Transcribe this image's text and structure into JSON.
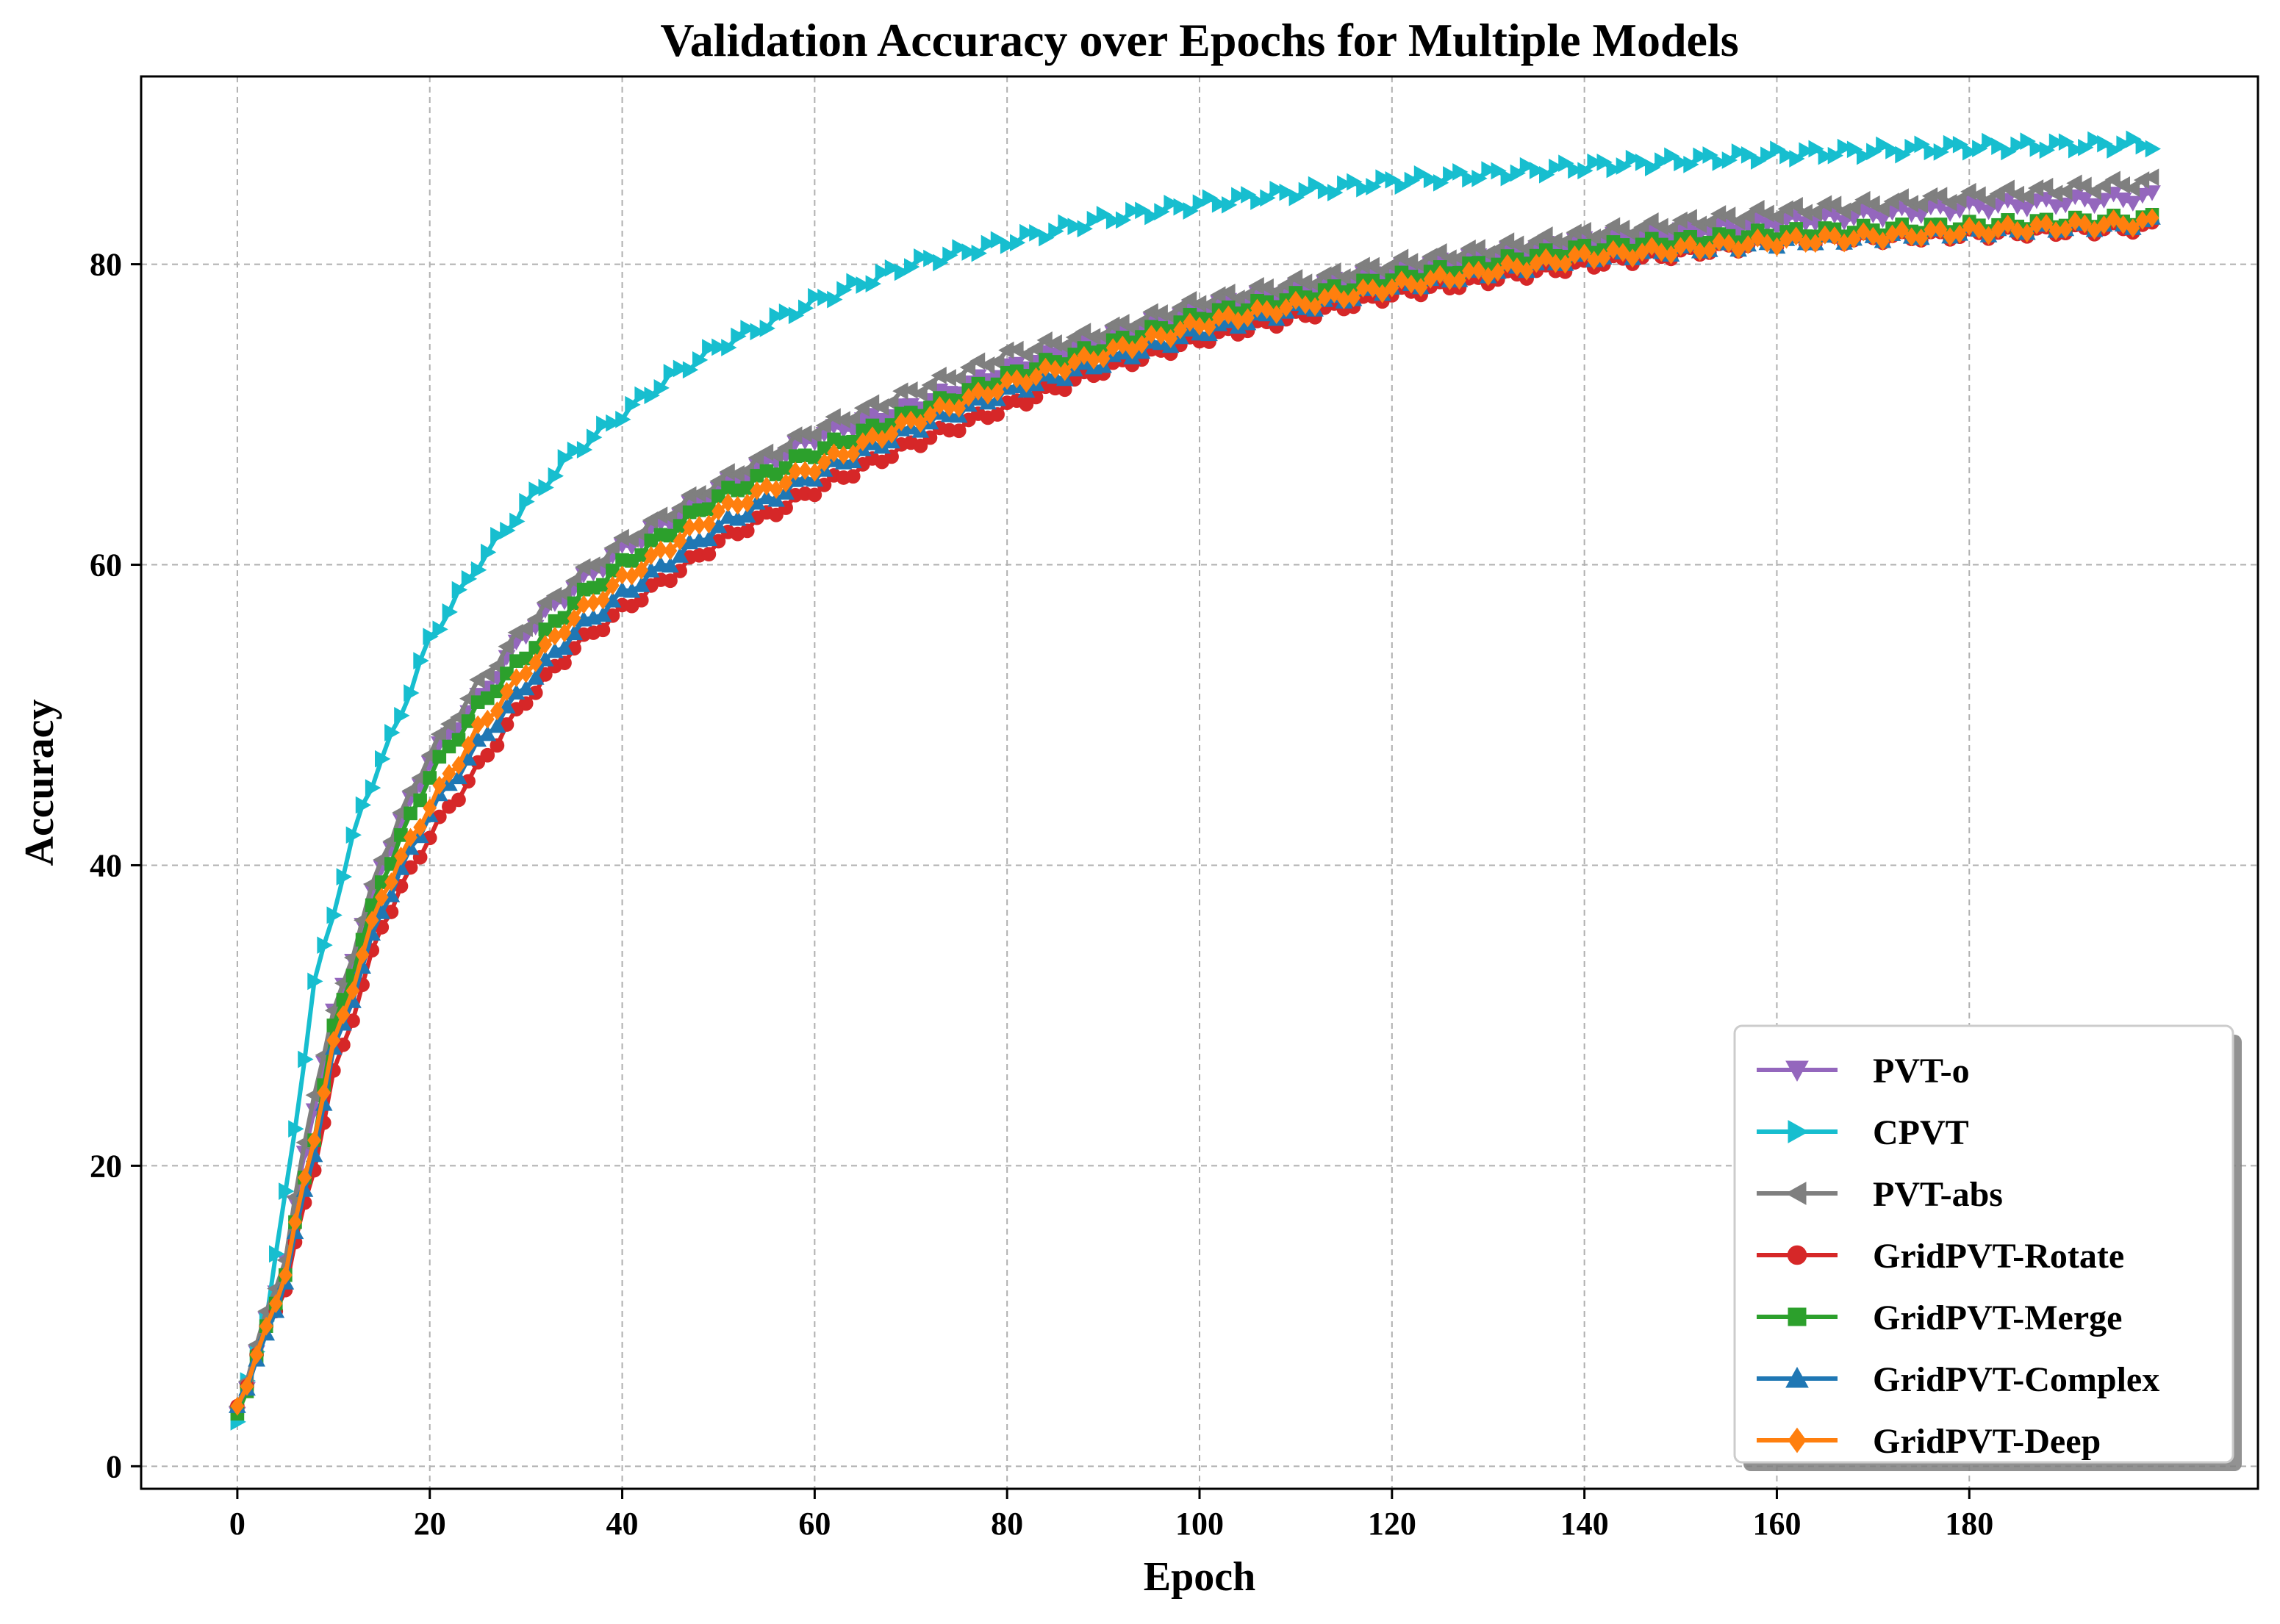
{
  "chart_data": {
    "type": "line",
    "title": "Validation Accuracy over Epochs for Multiple Models",
    "xlabel": "Epoch",
    "ylabel": "Accuracy",
    "xlim": [
      -10,
      210
    ],
    "ylim": [
      -1.5,
      92.5
    ],
    "xticks": [
      0,
      20,
      40,
      60,
      80,
      100,
      120,
      140,
      160,
      180
    ],
    "yticks": [
      0,
      20,
      40,
      60,
      80
    ],
    "grid": true,
    "legend_position": "lower-right",
    "epochs": 200,
    "series": [
      {
        "name": "PVT-o",
        "color": "#9467bd",
        "marker": "triangle-down",
        "anchors": [
          [
            0,
            3.5
          ],
          [
            3,
            9.5
          ],
          [
            5,
            14
          ],
          [
            8,
            24
          ],
          [
            10,
            30
          ],
          [
            15,
            40
          ],
          [
            20,
            47
          ],
          [
            25,
            51
          ],
          [
            30,
            55.5
          ],
          [
            35,
            58.5
          ],
          [
            40,
            61
          ],
          [
            50,
            65
          ],
          [
            60,
            68.5
          ],
          [
            70,
            70.5
          ],
          [
            80,
            73
          ],
          [
            90,
            75
          ],
          [
            100,
            77
          ],
          [
            120,
            79.5
          ],
          [
            140,
            81.5
          ],
          [
            160,
            82.8
          ],
          [
            180,
            83.8
          ],
          [
            199,
            84.5
          ]
        ]
      },
      {
        "name": "CPVT",
        "color": "#17becf",
        "marker": "triangle-right",
        "anchors": [
          [
            0,
            3
          ],
          [
            3,
            10
          ],
          [
            5,
            18
          ],
          [
            8,
            32
          ],
          [
            10,
            37
          ],
          [
            13,
            44
          ],
          [
            16,
            48.5
          ],
          [
            20,
            55
          ],
          [
            25,
            60
          ],
          [
            30,
            64
          ],
          [
            35,
            67.5
          ],
          [
            40,
            70
          ],
          [
            45,
            72.5
          ],
          [
            50,
            74.5
          ],
          [
            60,
            77.5
          ],
          [
            70,
            80
          ],
          [
            80,
            81.5
          ],
          [
            90,
            83
          ],
          [
            100,
            84
          ],
          [
            110,
            84.8
          ],
          [
            120,
            85.5
          ],
          [
            140,
            86.5
          ],
          [
            160,
            87.3
          ],
          [
            180,
            87.8
          ],
          [
            199,
            88
          ]
        ]
      },
      {
        "name": "PVT-abs",
        "color": "#7f7f7f",
        "marker": "triangle-left",
        "anchors": [
          [
            0,
            4
          ],
          [
            3,
            10
          ],
          [
            5,
            14
          ],
          [
            8,
            25
          ],
          [
            10,
            30
          ],
          [
            15,
            40.5
          ],
          [
            20,
            47.5
          ],
          [
            25,
            52
          ],
          [
            30,
            56
          ],
          [
            35,
            59
          ],
          [
            40,
            61.5
          ],
          [
            50,
            65.5
          ],
          [
            60,
            69
          ],
          [
            70,
            71.5
          ],
          [
            80,
            74
          ],
          [
            90,
            75.5
          ],
          [
            100,
            77.5
          ],
          [
            120,
            80
          ],
          [
            140,
            82
          ],
          [
            160,
            83.5
          ],
          [
            180,
            84.5
          ],
          [
            199,
            85.5
          ]
        ]
      },
      {
        "name": "GridPVT-Rotate",
        "color": "#d62728",
        "marker": "circle",
        "anchors": [
          [
            0,
            4
          ],
          [
            3,
            9
          ],
          [
            5,
            12
          ],
          [
            8,
            20
          ],
          [
            10,
            26
          ],
          [
            15,
            36
          ],
          [
            20,
            42
          ],
          [
            25,
            46.5
          ],
          [
            30,
            51
          ],
          [
            35,
            54.5
          ],
          [
            40,
            57
          ],
          [
            50,
            61.5
          ],
          [
            60,
            65
          ],
          [
            70,
            68
          ],
          [
            80,
            70.5
          ],
          [
            90,
            73
          ],
          [
            100,
            75
          ],
          [
            120,
            78
          ],
          [
            140,
            80
          ],
          [
            160,
            81.5
          ],
          [
            180,
            82
          ],
          [
            199,
            82.5
          ]
        ]
      },
      {
        "name": "GridPVT-Merge",
        "color": "#2ca02c",
        "marker": "square",
        "anchors": [
          [
            0,
            3.5
          ],
          [
            3,
            9
          ],
          [
            5,
            13
          ],
          [
            8,
            22
          ],
          [
            10,
            29
          ],
          [
            15,
            39
          ],
          [
            20,
            46
          ],
          [
            25,
            50.5
          ],
          [
            30,
            54
          ],
          [
            35,
            57.5
          ],
          [
            40,
            60
          ],
          [
            50,
            64.5
          ],
          [
            60,
            67.5
          ],
          [
            70,
            70
          ],
          [
            80,
            72.5
          ],
          [
            90,
            74.5
          ],
          [
            100,
            76.5
          ],
          [
            120,
            79
          ],
          [
            140,
            81
          ],
          [
            160,
            82
          ],
          [
            180,
            82.5
          ],
          [
            199,
            83
          ]
        ]
      },
      {
        "name": "GridPVT-Complex",
        "color": "#1f77b4",
        "marker": "triangle-up",
        "anchors": [
          [
            0,
            4
          ],
          [
            3,
            8.5
          ],
          [
            5,
            12.5
          ],
          [
            8,
            21
          ],
          [
            10,
            27.5
          ],
          [
            15,
            37
          ],
          [
            20,
            43.5
          ],
          [
            25,
            48
          ],
          [
            30,
            52
          ],
          [
            35,
            55.5
          ],
          [
            40,
            58
          ],
          [
            50,
            62.5
          ],
          [
            60,
            66
          ],
          [
            70,
            69
          ],
          [
            80,
            71.5
          ],
          [
            90,
            73.5
          ],
          [
            100,
            75.5
          ],
          [
            120,
            78.5
          ],
          [
            140,
            80.5
          ],
          [
            160,
            81.5
          ],
          [
            180,
            82.2
          ],
          [
            199,
            82.8
          ]
        ]
      },
      {
        "name": "GridPVT-Deep",
        "color": "#ff7f0e",
        "marker": "diamond",
        "anchors": [
          [
            0,
            4
          ],
          [
            3,
            9
          ],
          [
            5,
            13
          ],
          [
            8,
            22
          ],
          [
            10,
            28
          ],
          [
            15,
            38
          ],
          [
            20,
            44
          ],
          [
            25,
            49
          ],
          [
            30,
            53
          ],
          [
            35,
            56.5
          ],
          [
            40,
            59
          ],
          [
            50,
            63.5
          ],
          [
            60,
            66.5
          ],
          [
            70,
            69.5
          ],
          [
            80,
            72
          ],
          [
            90,
            74
          ],
          [
            100,
            76
          ],
          [
            120,
            78.5
          ],
          [
            140,
            80.5
          ],
          [
            160,
            81.5
          ],
          [
            180,
            82.2
          ],
          [
            199,
            82.8
          ]
        ]
      }
    ]
  }
}
